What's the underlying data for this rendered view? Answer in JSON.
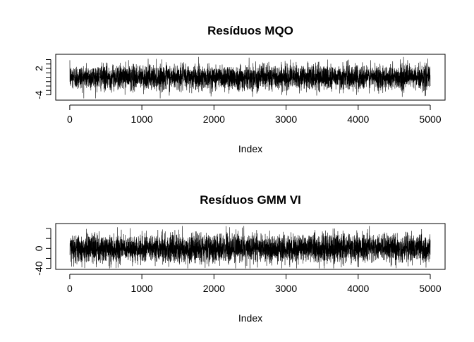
{
  "chart_data": [
    {
      "type": "line",
      "title": "Resíduos MQO",
      "xlabel": "Index",
      "ylabel": "",
      "x_range": [
        1,
        5000
      ],
      "n_points": 5000,
      "xlim": [
        1,
        5000
      ],
      "ylim": [
        -5.2,
        5.2
      ],
      "x_ticks": [
        0,
        1000,
        2000,
        3000,
        4000,
        5000
      ],
      "y_ticks": [
        -4,
        -3,
        -2,
        -1,
        0,
        1,
        2,
        3,
        4
      ],
      "y_tick_labels": {
        "-4": "-4",
        "2": "2"
      },
      "series": [
        {
          "values_summary": {
            "center": 0,
            "typical_range": [
              -2.5,
              2.5
            ],
            "extremes": [
              -4.8,
              4.6
            ]
          }
        }
      ],
      "grid": false,
      "legend": "none"
    },
    {
      "type": "line",
      "title": "Resíduos GMM VI",
      "xlabel": "Index",
      "ylabel": "",
      "x_range": [
        1,
        5000
      ],
      "n_points": 5000,
      "xlim": [
        1,
        5000
      ],
      "ylim": [
        -42,
        50
      ],
      "x_ticks": [
        0,
        1000,
        2000,
        3000,
        4000,
        5000
      ],
      "y_ticks": [
        -40,
        -20,
        0,
        20,
        40
      ],
      "y_tick_labels": {
        "-40": "-40",
        "0": "0"
      },
      "series": [
        {
          "values_summary": {
            "center": 0,
            "typical_range": [
              -25,
              25
            ],
            "extremes": [
              -40,
              45
            ]
          }
        }
      ],
      "grid": false,
      "legend": "none"
    }
  ]
}
